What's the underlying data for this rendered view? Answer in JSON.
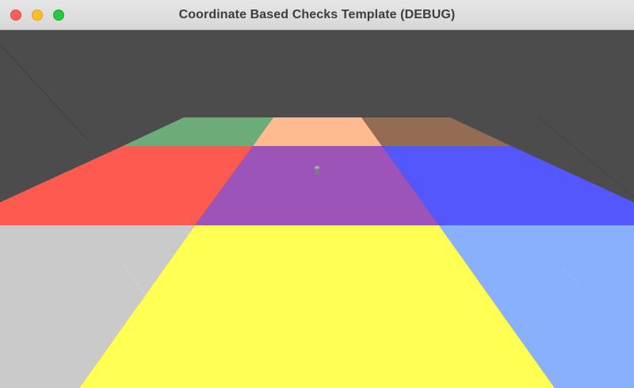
{
  "window": {
    "title": "Coordinate Based Checks Template (DEBUG)",
    "buttons": [
      "close",
      "minimize",
      "zoom"
    ]
  },
  "scene": {
    "background": "#4c4c4c",
    "tiles": [
      {
        "row": "far",
        "column": "left",
        "color": "#6cac78"
      },
      {
        "row": "far",
        "column": "center",
        "color": "#ffbb90"
      },
      {
        "row": "far",
        "column": "right",
        "color": "#946c54"
      },
      {
        "row": "middle",
        "column": "left",
        "color": "#ff5a50"
      },
      {
        "row": "middle",
        "column": "center",
        "color": "#9c54b8"
      },
      {
        "row": "middle",
        "column": "right",
        "color": "#5458fc"
      },
      {
        "row": "near",
        "column": "left",
        "color": "#cacaca"
      },
      {
        "row": "near",
        "column": "center",
        "color": "#ffff54"
      },
      {
        "row": "near",
        "column": "right",
        "color": "#88b0fc"
      }
    ],
    "object": {
      "name": "player-marker",
      "color": "#7a7a82"
    }
  }
}
